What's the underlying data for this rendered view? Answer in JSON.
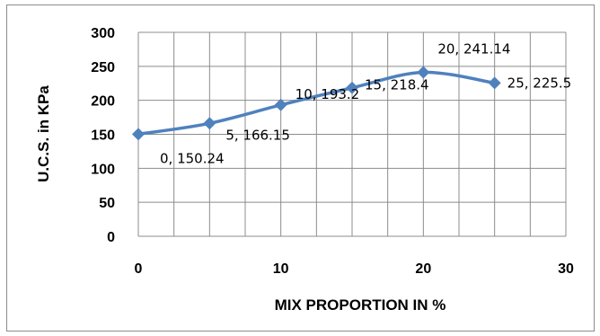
{
  "chart_data": {
    "type": "line",
    "title": "",
    "xlabel": "MIX PROPORTION IN %",
    "ylabel": "U.C.S. in KPa",
    "xlim": [
      0,
      30
    ],
    "ylim": [
      0,
      300
    ],
    "x_ticks": [
      0,
      10,
      20,
      30
    ],
    "y_ticks": [
      0,
      50,
      100,
      150,
      200,
      250,
      300
    ],
    "x_minor_grid_step": 2.5,
    "grid": true,
    "legend": "none",
    "line_color": "#4f81bd",
    "series": [
      {
        "x": [
          0,
          5,
          10,
          15,
          20,
          25
        ],
        "y": [
          150.24,
          166.15,
          193.2,
          218.4,
          241.14,
          225.5
        ],
        "labels": [
          "0, 150.24",
          "5, 166.15",
          "10, 193.2",
          "15, 218.4",
          "20, 241.14",
          "25, 225.5"
        ]
      }
    ]
  }
}
